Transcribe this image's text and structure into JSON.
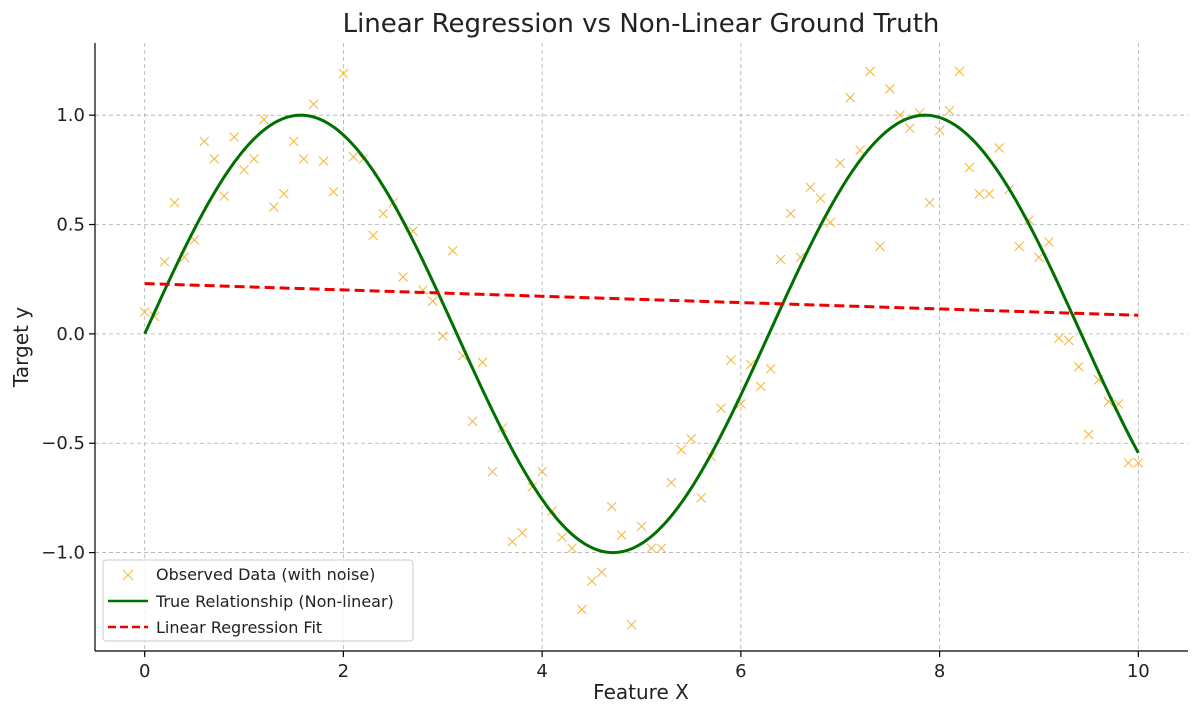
{
  "chart_data": {
    "type": "scatter",
    "title": "Linear Regression vs Non-Linear Ground Truth",
    "xlabel": "Feature X",
    "ylabel": "Target y",
    "xlim": [
      -0.5,
      10.5
    ],
    "ylim": [
      -1.45,
      1.33
    ],
    "xticks": [
      0,
      2,
      4,
      6,
      8,
      10
    ],
    "xtick_labels": [
      "0",
      "2",
      "4",
      "6",
      "8",
      "10"
    ],
    "yticks": [
      -1.0,
      -0.5,
      0.0,
      0.5,
      1.0
    ],
    "ytick_labels": [
      "−1.0",
      "−0.5",
      "0.0",
      "0.5",
      "1.0"
    ],
    "grid": true,
    "legend_position": "lower-left",
    "colors": {
      "observed": "#f5b942",
      "true": "#007000",
      "regression": "#ee0000"
    },
    "series": [
      {
        "name": "Observed Data (with noise)",
        "kind": "scatter",
        "marker": "x",
        "x": [
          0.0,
          0.1,
          0.2,
          0.3,
          0.4,
          0.5,
          0.6,
          0.7,
          0.8,
          0.9,
          1.0,
          1.1,
          1.2,
          1.3,
          1.4,
          1.5,
          1.6,
          1.7,
          1.8,
          1.9,
          2.0,
          2.1,
          2.2,
          2.3,
          2.4,
          2.5,
          2.6,
          2.7,
          2.8,
          2.9,
          3.0,
          3.1,
          3.2,
          3.3,
          3.4,
          3.5,
          3.6,
          3.7,
          3.8,
          3.9,
          4.0,
          4.1,
          4.2,
          4.3,
          4.4,
          4.5,
          4.6,
          4.7,
          4.8,
          4.9,
          5.0,
          5.1,
          5.2,
          5.3,
          5.4,
          5.5,
          5.6,
          5.7,
          5.8,
          5.9,
          6.0,
          6.1,
          6.2,
          6.3,
          6.4,
          6.5,
          6.6,
          6.7,
          6.8,
          6.9,
          7.0,
          7.1,
          7.2,
          7.3,
          7.4,
          7.5,
          7.6,
          7.7,
          7.8,
          7.9,
          8.0,
          8.1,
          8.2,
          8.3,
          8.4,
          8.5,
          8.6,
          8.7,
          8.8,
          8.9,
          9.0,
          9.1,
          9.2,
          9.3,
          9.4,
          9.5,
          9.6,
          9.7,
          9.8,
          9.9,
          10.0
        ],
        "y": [
          0.1,
          0.08,
          0.33,
          0.6,
          0.35,
          0.43,
          0.88,
          0.8,
          0.63,
          0.9,
          0.75,
          0.8,
          0.98,
          0.58,
          0.64,
          0.88,
          0.8,
          1.05,
          0.79,
          0.65,
          1.19,
          0.81,
          0.8,
          0.45,
          0.55,
          0.6,
          0.26,
          0.47,
          0.2,
          0.15,
          -0.01,
          0.38,
          -0.1,
          -0.4,
          -0.13,
          -0.63,
          -0.43,
          -0.95,
          -0.91,
          -0.7,
          -0.63,
          -0.81,
          -0.93,
          -0.98,
          -1.26,
          -1.13,
          -1.09,
          -0.79,
          -0.92,
          -1.33,
          -0.88,
          -0.98,
          -0.98,
          -0.68,
          -0.53,
          -0.48,
          -0.75,
          -0.56,
          -0.34,
          -0.12,
          -0.32,
          -0.14,
          -0.24,
          -0.16,
          0.34,
          0.55,
          0.35,
          0.67,
          0.62,
          0.51,
          0.78,
          1.08,
          0.84,
          1.2,
          0.4,
          1.12,
          1.0,
          0.94,
          1.01,
          0.6,
          0.93,
          1.02,
          1.2,
          0.76,
          0.64,
          0.64,
          0.85,
          0.66,
          0.4,
          0.52,
          0.35,
          0.42,
          -0.02,
          -0.03,
          -0.15,
          -0.46,
          -0.21,
          -0.31,
          -0.32,
          -0.59,
          -0.59
        ]
      },
      {
        "name": "True Relationship (Non-linear)",
        "kind": "line",
        "function": "sin",
        "x_range": [
          0,
          10
        ]
      },
      {
        "name": "Linear Regression Fit",
        "kind": "dashed-line",
        "x": [
          0,
          10
        ],
        "y": [
          0.23,
          0.085
        ]
      }
    ]
  }
}
